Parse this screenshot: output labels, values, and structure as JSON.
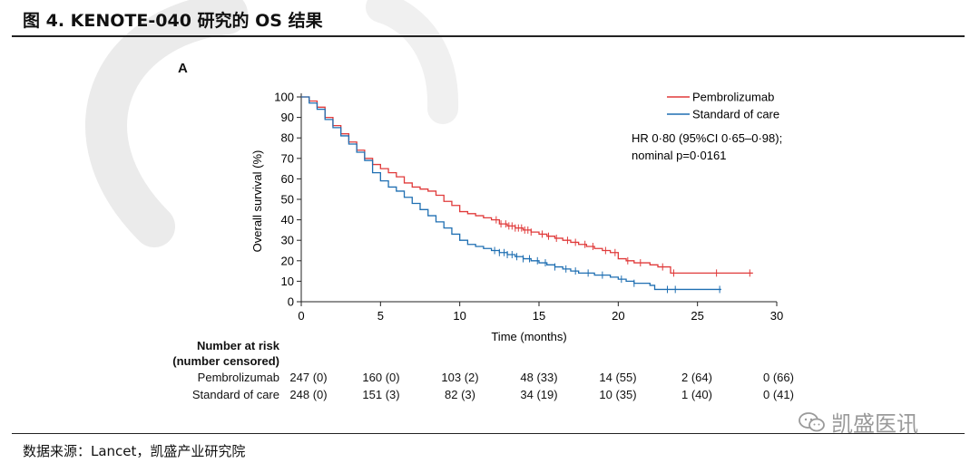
{
  "figure_title": "图 4. KENOTE-040 研究的 OS 结果",
  "panel_label": "A",
  "source_note": "数据来源：Lancet，凯盛产业研究院",
  "brand": {
    "name": "凯盛医讯",
    "icon": "wechat-icon"
  },
  "colors": {
    "pembrolizumab": "#e03a3a",
    "standard_of_care": "#1f6fb2",
    "axis": "#222222"
  },
  "chart_data": {
    "type": "line",
    "xlabel": "Time (months)",
    "ylabel": "Overall survival (%)",
    "xlim": [
      0,
      30
    ],
    "ylim": [
      0,
      100
    ],
    "x_ticks": [
      0,
      5,
      10,
      15,
      20,
      25,
      30
    ],
    "y_ticks": [
      0,
      10,
      20,
      30,
      40,
      50,
      60,
      70,
      80,
      90,
      100
    ],
    "legend_position": "top-right",
    "annotation": [
      "HR 0·80 (95%CI 0·65–0·98);",
      "nominal p=0·0161"
    ],
    "series": [
      {
        "name": "Pembrolizumab",
        "color_key": "pembrolizumab",
        "points": [
          [
            0,
            100
          ],
          [
            0.5,
            98
          ],
          [
            1,
            95
          ],
          [
            1.5,
            90
          ],
          [
            2,
            86
          ],
          [
            2.5,
            82
          ],
          [
            3,
            78
          ],
          [
            3.5,
            74
          ],
          [
            4,
            70
          ],
          [
            4.5,
            67
          ],
          [
            5,
            65
          ],
          [
            5.5,
            63
          ],
          [
            6,
            61
          ],
          [
            6.5,
            58
          ],
          [
            7,
            56
          ],
          [
            7.5,
            55
          ],
          [
            8,
            54
          ],
          [
            8.5,
            52
          ],
          [
            9,
            49
          ],
          [
            9.5,
            47
          ],
          [
            10,
            44
          ],
          [
            10.5,
            43
          ],
          [
            11,
            42
          ],
          [
            11.5,
            41
          ],
          [
            12,
            40
          ],
          [
            12.5,
            38
          ],
          [
            13,
            37
          ],
          [
            13.5,
            36
          ],
          [
            14,
            35
          ],
          [
            14.5,
            34
          ],
          [
            15,
            33
          ],
          [
            15.5,
            32
          ],
          [
            16,
            31
          ],
          [
            16.5,
            30
          ],
          [
            17,
            29
          ],
          [
            17.5,
            28
          ],
          [
            18,
            27
          ],
          [
            18.5,
            26
          ],
          [
            19,
            25
          ],
          [
            19.5,
            24
          ],
          [
            20,
            21
          ],
          [
            20.5,
            20
          ],
          [
            21,
            19
          ],
          [
            21.5,
            19
          ],
          [
            22,
            18
          ],
          [
            22.5,
            17
          ],
          [
            23,
            17
          ],
          [
            23.3,
            14
          ],
          [
            25,
            14
          ],
          [
            26,
            14
          ],
          [
            28.5,
            14
          ]
        ],
        "censors": [
          12.3,
          12.6,
          12.9,
          13.1,
          13.3,
          13.5,
          13.7,
          13.9,
          14.1,
          14.3,
          14.5,
          15.2,
          15.6,
          16.1,
          16.8,
          17.3,
          17.9,
          18.4,
          19.2,
          19.8,
          20.6,
          21.4,
          22.8,
          23.5,
          26.2,
          28.3
        ]
      },
      {
        "name": "Standard of care",
        "color_key": "standard_of_care",
        "points": [
          [
            0,
            100
          ],
          [
            0.5,
            97
          ],
          [
            1,
            94
          ],
          [
            1.5,
            89
          ],
          [
            2,
            85
          ],
          [
            2.5,
            81
          ],
          [
            3,
            77
          ],
          [
            3.5,
            73
          ],
          [
            4,
            69
          ],
          [
            4.5,
            63
          ],
          [
            5,
            59
          ],
          [
            5.5,
            56
          ],
          [
            6,
            54
          ],
          [
            6.5,
            51
          ],
          [
            7,
            48
          ],
          [
            7.5,
            45
          ],
          [
            8,
            42
          ],
          [
            8.5,
            39
          ],
          [
            9,
            36
          ],
          [
            9.5,
            33
          ],
          [
            10,
            30
          ],
          [
            10.5,
            28
          ],
          [
            11,
            27
          ],
          [
            11.5,
            26
          ],
          [
            12,
            25
          ],
          [
            12.5,
            24
          ],
          [
            13,
            23
          ],
          [
            13.5,
            22
          ],
          [
            14,
            21
          ],
          [
            14.5,
            20
          ],
          [
            15,
            19
          ],
          [
            15.5,
            18
          ],
          [
            16,
            17
          ],
          [
            16.5,
            16
          ],
          [
            17,
            15
          ],
          [
            17.5,
            14
          ],
          [
            18,
            14
          ],
          [
            18.5,
            13
          ],
          [
            19,
            13
          ],
          [
            19.5,
            12
          ],
          [
            20,
            11
          ],
          [
            20.5,
            10
          ],
          [
            21,
            9
          ],
          [
            21.5,
            9
          ],
          [
            22,
            8
          ],
          [
            22.3,
            6
          ],
          [
            24,
            6
          ],
          [
            25,
            6
          ],
          [
            26.5,
            6
          ]
        ],
        "censors": [
          12.2,
          12.5,
          12.8,
          13.0,
          13.3,
          13.6,
          14.0,
          14.4,
          14.9,
          15.4,
          16.0,
          16.7,
          17.3,
          18.1,
          19.0,
          20.2,
          21.0,
          23.1,
          23.6,
          26.4
        ]
      }
    ],
    "number_at_risk": {
      "header": [
        "Number at risk",
        "(number censored)"
      ],
      "rows": [
        {
          "label": "Pembrolizumab",
          "values": [
            "247 (0)",
            "160 (0)",
            "103 (2)",
            "48 (33)",
            "14 (55)",
            "2 (64)",
            "0 (66)"
          ]
        },
        {
          "label": "Standard of care",
          "values": [
            "248 (0)",
            "151 (3)",
            "82 (3)",
            "34 (19)",
            "10 (35)",
            "1 (40)",
            "0 (41)"
          ]
        }
      ]
    }
  }
}
